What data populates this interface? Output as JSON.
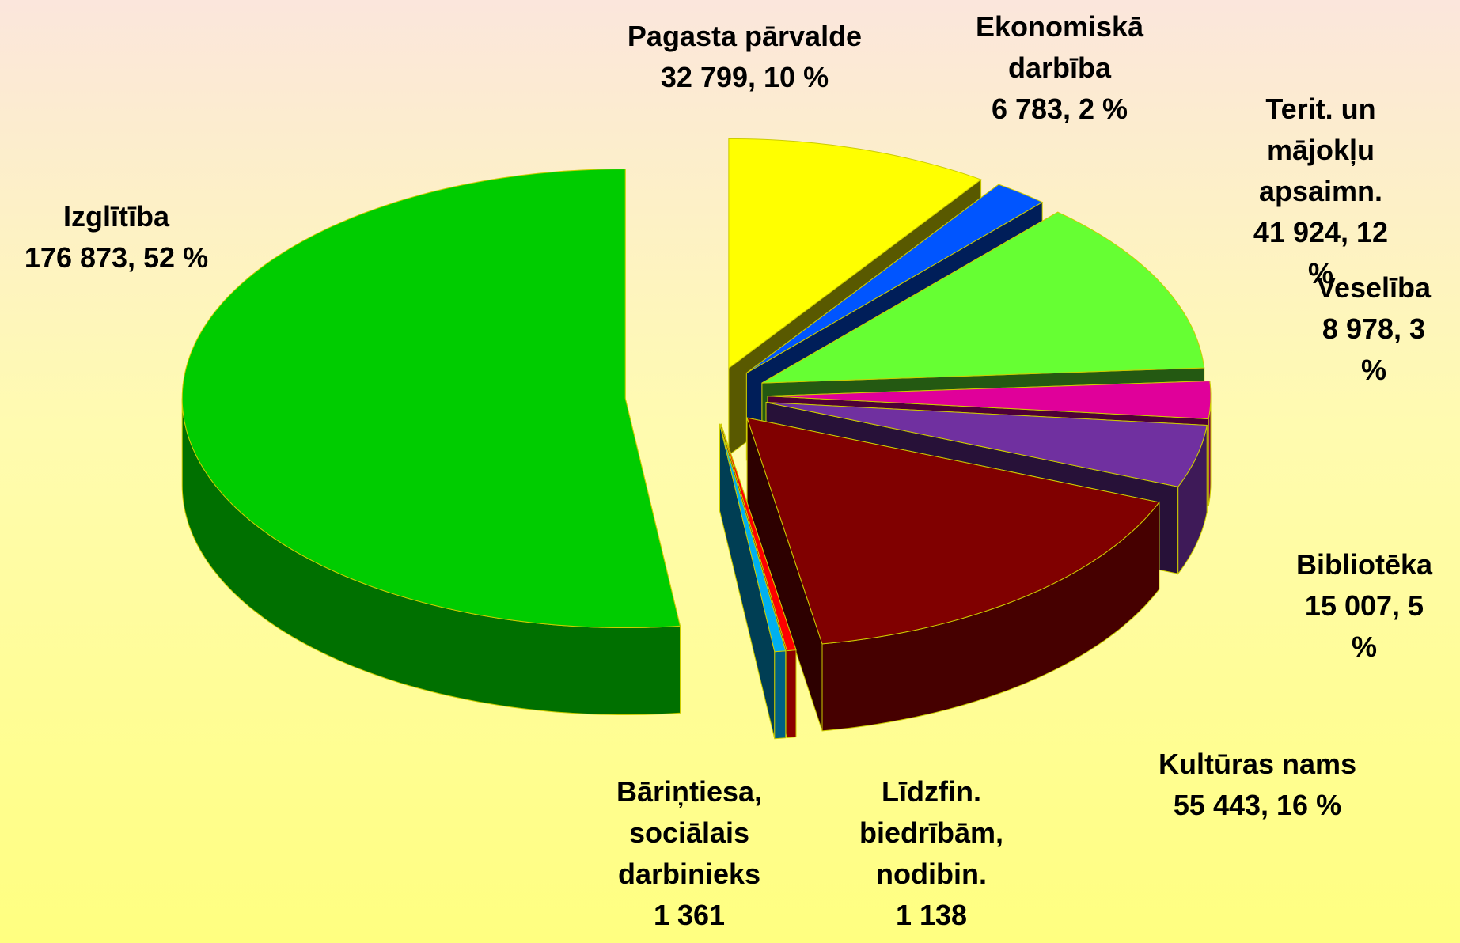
{
  "chart_data": {
    "type": "pie",
    "categories": [
      "Pagasta pārvalde",
      "Ekonomiskā\ndarbība",
      "Terit. un mājokļu\napsaimn.",
      "Veselība",
      "Bibliotēka",
      "Kultūras nams",
      "Līdzfin.\nbiedrībām,\nnodibin.",
      "Bāriņtiesa,\nsociālais\ndarbinieks",
      "Izglītība"
    ],
    "values": [
      32799,
      6783,
      41924,
      8978,
      15007,
      55443,
      1138,
      1361,
      176873
    ],
    "value_labels": [
      "32 799, 10 %",
      "6 783, 2 %",
      "41 924, 12 %",
      "8 978, 3 %",
      "15 007, 5 %",
      "55 443, 16 %",
      "1 138",
      "1 361",
      "176 873, 52 %"
    ],
    "colors": [
      "#ffff00",
      "#0055ff",
      "#66ff33",
      "#e0009a",
      "#7030a0",
      "#800000",
      "#ff0000",
      "#00b0f0",
      "#00cc00"
    ]
  }
}
